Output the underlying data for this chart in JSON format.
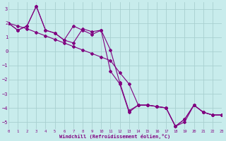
{
  "xlabel": "Windchill (Refroidissement éolien,°C)",
  "background_color": "#c8ecec",
  "line_color": "#800080",
  "grid_color": "#a8d0d0",
  "xlim": [
    0,
    23
  ],
  "ylim": [
    -5.5,
    3.5
  ],
  "xticks": [
    0,
    1,
    2,
    3,
    4,
    5,
    6,
    7,
    8,
    9,
    10,
    11,
    12,
    13,
    14,
    15,
    16,
    17,
    18,
    19,
    20,
    21,
    22,
    23
  ],
  "yticks": [
    -5,
    -4,
    -3,
    -2,
    -1,
    0,
    1,
    2,
    3
  ],
  "line1_x": [
    0,
    1,
    2,
    3,
    4,
    5,
    6,
    7,
    8,
    9,
    10,
    11,
    12,
    13,
    14,
    15,
    16,
    17,
    18,
    19,
    20,
    21,
    22,
    23
  ],
  "line1_y": [
    2.0,
    1.5,
    1.8,
    3.2,
    1.5,
    1.3,
    0.8,
    0.6,
    1.6,
    1.4,
    1.5,
    -1.4,
    -2.3,
    -4.3,
    -3.8,
    -3.8,
    -3.9,
    -4.0,
    -5.3,
    -5.0,
    -3.8,
    -4.3,
    -4.5,
    -4.5
  ],
  "line2_x": [
    0,
    1,
    2,
    3,
    4,
    5,
    6,
    7,
    8,
    9,
    10,
    11,
    12,
    13,
    14,
    15,
    16,
    17,
    18,
    19,
    20,
    21,
    22,
    23
  ],
  "line2_y": [
    2.0,
    1.5,
    1.8,
    3.2,
    1.5,
    1.3,
    0.8,
    1.8,
    1.5,
    1.2,
    1.5,
    0.1,
    -2.2,
    -4.2,
    -3.8,
    -3.8,
    -3.9,
    -4.0,
    -5.3,
    -4.8,
    -3.8,
    -4.3,
    -4.5,
    -4.5
  ],
  "line3_x": [
    0,
    1,
    2,
    3,
    4,
    5,
    6,
    7,
    8,
    9,
    10,
    11,
    12,
    13,
    14,
    15,
    16,
    17,
    18,
    19,
    20,
    21,
    22,
    23
  ],
  "line3_y": [
    2.0,
    1.8,
    1.6,
    1.35,
    1.1,
    0.85,
    0.6,
    0.35,
    0.1,
    -0.15,
    -0.4,
    -0.65,
    -1.5,
    -2.3,
    -3.8,
    -3.8,
    -3.9,
    -4.0,
    -5.3,
    -4.8,
    -3.8,
    -4.3,
    -4.5,
    -4.5
  ]
}
